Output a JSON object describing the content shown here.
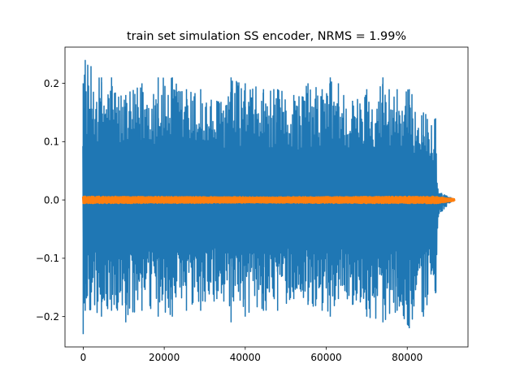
{
  "chart_data": {
    "type": "line",
    "title": "train set simulation SS encoder, NRMS = 1.99%",
    "xlabel": "",
    "ylabel": "",
    "xlim": [
      -4500,
      95000
    ],
    "ylim": [
      -0.252,
      0.262
    ],
    "x_ticks": [
      0,
      20000,
      40000,
      60000,
      80000
    ],
    "x_tick_labels": [
      "0",
      "20000",
      "40000",
      "60000",
      "80000"
    ],
    "y_ticks": [
      -0.2,
      -0.1,
      0.0,
      0.1,
      0.2
    ],
    "y_tick_labels": [
      "−0.2",
      "−0.1",
      "0.0",
      "0.1",
      "0.2"
    ],
    "grid": false,
    "legend": "none",
    "series": [
      {
        "color": "#1f77b4",
        "description_points": {
          "x": [
            0,
            500,
            4500,
            7000,
            10500,
            14500,
            18500,
            22000,
            25500,
            29000,
            33000,
            36500,
            40000,
            44500,
            48000,
            52000,
            55500,
            59000,
            61000,
            63000,
            66500,
            70000,
            74000,
            77500,
            80500,
            84000,
            87000,
            87500,
            88500,
            89500,
            90500,
            91500
          ],
          "upper": [
            0.2,
            0.24,
            0.21,
            0.21,
            0.18,
            0.2,
            0.21,
            0.21,
            0.19,
            0.19,
            0.17,
            0.21,
            0.2,
            0.19,
            0.19,
            0.18,
            0.2,
            0.19,
            0.21,
            0.2,
            0.17,
            0.19,
            0.21,
            0.19,
            0.19,
            0.15,
            0.14,
            0.02,
            0.012,
            0.008,
            0.005,
            0.002
          ],
          "lower": [
            -0.23,
            -0.19,
            -0.2,
            -0.19,
            -0.21,
            -0.19,
            -0.2,
            -0.2,
            -0.19,
            -0.19,
            -0.17,
            -0.21,
            -0.2,
            -0.19,
            -0.19,
            -0.17,
            -0.18,
            -0.19,
            -0.2,
            -0.17,
            -0.18,
            -0.2,
            -0.21,
            -0.19,
            -0.22,
            -0.2,
            -0.16,
            -0.03,
            -0.02,
            -0.012,
            -0.005,
            -0.002
          ]
        }
      },
      {
        "color": "#ff7f0e",
        "description_points": {
          "x": [
            0,
            45000,
            87000,
            91500
          ],
          "upper": [
            0.006,
            0.005,
            0.006,
            0.002
          ],
          "lower": [
            -0.006,
            -0.005,
            -0.006,
            -0.002
          ]
        }
      }
    ]
  }
}
